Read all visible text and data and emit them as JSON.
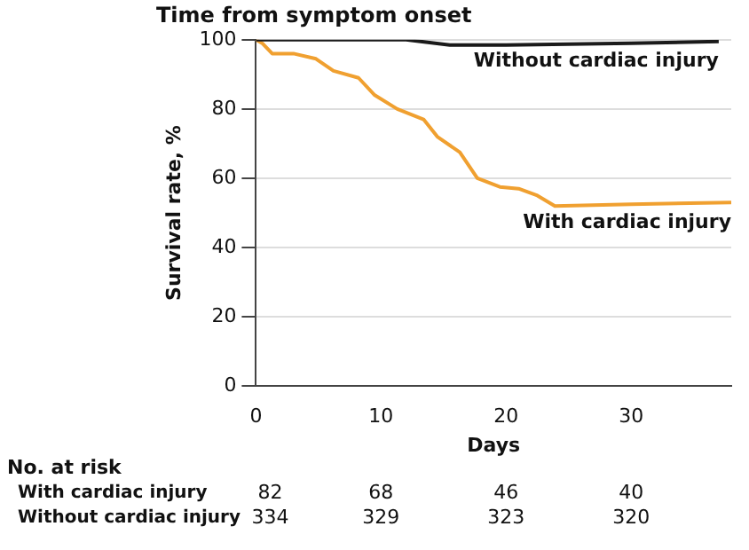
{
  "chart_data": {
    "type": "line",
    "title": "Time from symptom onset",
    "xlabel": "Days",
    "ylabel": "Survival rate, %",
    "xlim": [
      0,
      38
    ],
    "xticks": [
      0,
      10,
      20,
      30
    ],
    "ylim": [
      0,
      100
    ],
    "yticks": [
      0,
      20,
      40,
      60,
      80,
      100
    ],
    "grid": "y",
    "legend": false,
    "marker": "none",
    "line_style": "solid",
    "series": [
      {
        "name": "Without cardiac injury",
        "color": "#1a1a1a",
        "x": [
          0,
          6,
          12,
          15.5,
          20,
          30,
          37
        ],
        "values": [
          100,
          100,
          100,
          98.5,
          98.5,
          99,
          99.5
        ]
      },
      {
        "name": "With cardiac injury",
        "color": "#f0a030",
        "x": [
          0,
          0.5,
          1.3,
          3,
          4.8,
          6.2,
          8.2,
          9.5,
          11.3,
          13.4,
          14.5,
          16.3,
          17.7,
          19.5,
          21,
          22.5,
          23.9,
          30,
          38
        ],
        "values": [
          100,
          99,
          96,
          96,
          94.5,
          91,
          89,
          84,
          80,
          77,
          72,
          67.5,
          60,
          57.5,
          57,
          55,
          52,
          52.5,
          53
        ]
      }
    ],
    "annotations": [
      "No. at risk",
      "With cardiac injury",
      "82",
      "68",
      "46",
      "40",
      "Without cardiac injury",
      "334",
      "329",
      "323",
      "320"
    ]
  }
}
